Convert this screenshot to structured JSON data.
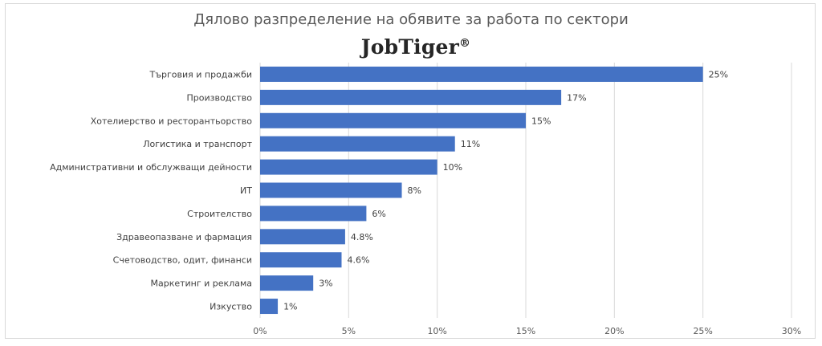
{
  "title": "Дялово разпределение на обявите за работа по сектори",
  "logo": {
    "text": "JobTiger",
    "mark": "®"
  },
  "colors": {
    "bar": "#4472C4",
    "grid": "#d9d9d9",
    "text": "#595959"
  },
  "chart_data": {
    "type": "bar",
    "orientation": "horizontal",
    "categories": [
      "Търговия и продажби",
      "Производство",
      "Хотелиерство и ресторантьорство",
      "Логистика и транспорт",
      "Административни и обслужващи дейности",
      "ИТ",
      "Строителство",
      "Здравеопазване и фармация",
      "Счетоводство, одит, финанси",
      "Маркетинг и реклама",
      "Изкуство"
    ],
    "values": [
      25,
      17,
      15,
      11,
      10,
      8,
      6,
      4.8,
      4.6,
      3,
      1
    ],
    "data_labels": [
      "25%",
      "17%",
      "15%",
      "11%",
      "10%",
      "8%",
      "6%",
      "4.8%",
      "4.6%",
      "3%",
      "1%"
    ],
    "xlim": [
      0,
      30
    ],
    "xticks": [
      0,
      5,
      10,
      15,
      20,
      25,
      30
    ],
    "xtick_labels": [
      "0%",
      "5%",
      "10%",
      "15%",
      "20%",
      "25%",
      "30%"
    ],
    "grid": true
  }
}
